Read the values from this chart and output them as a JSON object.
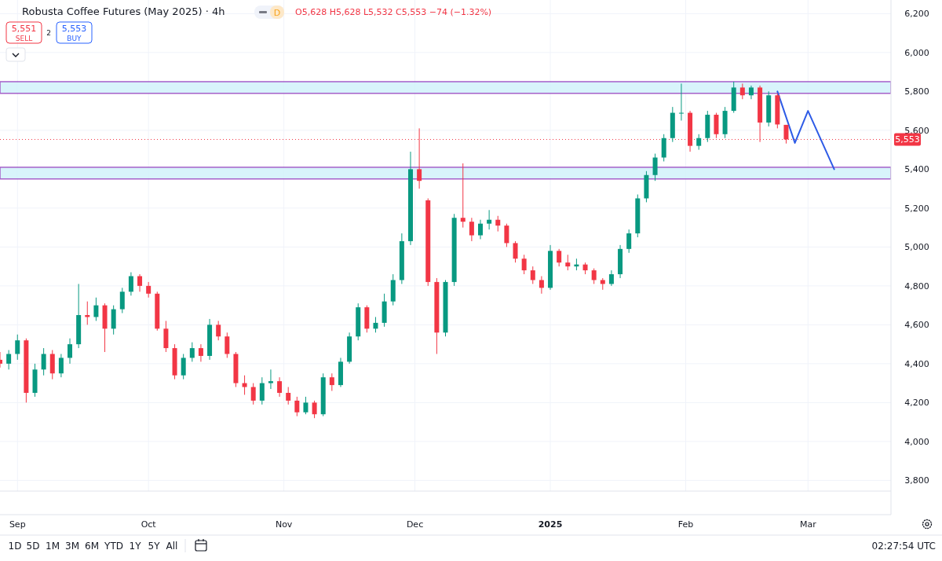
{
  "chart_data": {
    "type": "candlestick",
    "title": "Robusta Coffee Futures (May 2025) · 4h",
    "subtitle": "O5,628 H5,628 L5,532 C5,553 −74 (−1.32%)",
    "annotations": [
      "5,551",
      "SELL",
      "2",
      "5,553",
      "BUY",
      "D",
      "1D",
      "5D",
      "1M",
      "3M",
      "6M",
      "YTD",
      "1Y",
      "5Y",
      "All",
      "02:27:54 UTC"
    ],
    "xlim": [
      "2024-08-28",
      "2025-03-20"
    ],
    "xticks": [
      {
        "value": "2024-09-01",
        "label": "Sep"
      },
      {
        "value": "2024-10-01",
        "label": "Oct"
      },
      {
        "value": "2024-11-01",
        "label": "Nov"
      },
      {
        "value": "2024-12-01",
        "label": "Dec"
      },
      {
        "value": "2025-01-01",
        "label": "2025"
      },
      {
        "value": "2025-02-01",
        "label": "Feb"
      },
      {
        "value": "2025-03-01",
        "label": "Mar"
      }
    ],
    "ylim": [
      3745,
      6270
    ],
    "yticks": [
      {
        "value": 3800,
        "label": "3,800"
      },
      {
        "value": 4000,
        "label": "4,000"
      },
      {
        "value": 4200,
        "label": "4,200"
      },
      {
        "value": 4400,
        "label": "4,400"
      },
      {
        "value": 4600,
        "label": "4,600"
      },
      {
        "value": 4800,
        "label": "4,800"
      },
      {
        "value": 5000,
        "label": "5,000"
      },
      {
        "value": 5200,
        "label": "5,200"
      },
      {
        "value": 5400,
        "label": "5,400"
      },
      {
        "value": 5600,
        "label": "5,600"
      },
      {
        "value": 5800,
        "label": "5,800"
      },
      {
        "value": 6000,
        "label": "6,000"
      },
      {
        "value": 6200,
        "label": "6,200"
      }
    ],
    "grid": true,
    "bands": [
      {
        "axis": "y",
        "from": 5350,
        "to": 5410,
        "color": "#d4f3fb"
      },
      {
        "axis": "y",
        "from": 5790,
        "to": 5850,
        "color": "#d4f3fb"
      }
    ],
    "ref_lines": [
      {
        "axis": "y",
        "value": 5553,
        "label": "5,553",
        "color": "#f23645",
        "line_style": "dotted"
      }
    ],
    "series": [
      {
        "type": "candlestick",
        "x": [
          "2024-08-28",
          "2024-08-30",
          "2024-09-01",
          "2024-09-03",
          "2024-09-05",
          "2024-09-07",
          "2024-09-09",
          "2024-09-11",
          "2024-09-13",
          "2024-09-15",
          "2024-09-17",
          "2024-09-19",
          "2024-09-21",
          "2024-09-23",
          "2024-09-25",
          "2024-09-27",
          "2024-09-29",
          "2024-10-01",
          "2024-10-03",
          "2024-10-05",
          "2024-10-07",
          "2024-10-09",
          "2024-10-11",
          "2024-10-13",
          "2024-10-15",
          "2024-10-17",
          "2024-10-19",
          "2024-10-21",
          "2024-10-23",
          "2024-10-25",
          "2024-10-27",
          "2024-10-29",
          "2024-10-31",
          "2024-11-02",
          "2024-11-04",
          "2024-11-06",
          "2024-11-08",
          "2024-11-10",
          "2024-11-12",
          "2024-11-14",
          "2024-11-16",
          "2024-11-18",
          "2024-11-20",
          "2024-11-22",
          "2024-11-24",
          "2024-11-26",
          "2024-11-28",
          "2024-11-30",
          "2024-12-02",
          "2024-12-04",
          "2024-12-06",
          "2024-12-08",
          "2024-12-10",
          "2024-12-12",
          "2024-12-14",
          "2024-12-16",
          "2024-12-18",
          "2024-12-20",
          "2024-12-22",
          "2024-12-24",
          "2024-12-26",
          "2024-12-28",
          "2024-12-30",
          "2025-01-01",
          "2025-01-03",
          "2025-01-05",
          "2025-01-07",
          "2025-01-09",
          "2025-01-11",
          "2025-01-13",
          "2025-01-15",
          "2025-01-17",
          "2025-01-19",
          "2025-01-21",
          "2025-01-23",
          "2025-01-25",
          "2025-01-27",
          "2025-01-29",
          "2025-01-31",
          "2025-02-02",
          "2025-02-04",
          "2025-02-06",
          "2025-02-08",
          "2025-02-10",
          "2025-02-12",
          "2025-02-14",
          "2025-02-16",
          "2025-02-18",
          "2025-02-20",
          "2025-02-22",
          "2025-02-24"
        ],
        "ohlc": [
          [
            4420,
            4460,
            4380,
            4400
          ],
          [
            4400,
            4470,
            4370,
            4450
          ],
          [
            4450,
            4550,
            4420,
            4520
          ],
          [
            4520,
            4530,
            4200,
            4250
          ],
          [
            4250,
            4400,
            4230,
            4370
          ],
          [
            4370,
            4480,
            4340,
            4450
          ],
          [
            4450,
            4470,
            4320,
            4350
          ],
          [
            4350,
            4450,
            4330,
            4430
          ],
          [
            4430,
            4530,
            4400,
            4500
          ],
          [
            4500,
            4810,
            4480,
            4650
          ],
          [
            4650,
            4720,
            4600,
            4640
          ],
          [
            4640,
            4740,
            4620,
            4700
          ],
          [
            4700,
            4710,
            4460,
            4580
          ],
          [
            4580,
            4700,
            4550,
            4680
          ],
          [
            4680,
            4790,
            4660,
            4770
          ],
          [
            4770,
            4870,
            4750,
            4850
          ],
          [
            4850,
            4860,
            4770,
            4800
          ],
          [
            4800,
            4820,
            4740,
            4760
          ],
          [
            4760,
            4770,
            4570,
            4580
          ],
          [
            4580,
            4620,
            4460,
            4480
          ],
          [
            4480,
            4500,
            4320,
            4340
          ],
          [
            4340,
            4450,
            4320,
            4430
          ],
          [
            4430,
            4510,
            4410,
            4480
          ],
          [
            4480,
            4500,
            4410,
            4440
          ],
          [
            4440,
            4630,
            4420,
            4600
          ],
          [
            4600,
            4620,
            4520,
            4540
          ],
          [
            4540,
            4560,
            4430,
            4450
          ],
          [
            4450,
            4460,
            4280,
            4300
          ],
          [
            4300,
            4340,
            4240,
            4280
          ],
          [
            4280,
            4300,
            4190,
            4210
          ],
          [
            4210,
            4330,
            4190,
            4300
          ],
          [
            4300,
            4370,
            4270,
            4310
          ],
          [
            4310,
            4330,
            4230,
            4250
          ],
          [
            4250,
            4280,
            4190,
            4210
          ],
          [
            4210,
            4230,
            4130,
            4150
          ],
          [
            4150,
            4230,
            4140,
            4200
          ],
          [
            4200,
            4210,
            4120,
            4140
          ],
          [
            4140,
            4350,
            4130,
            4330
          ],
          [
            4330,
            4350,
            4260,
            4290
          ],
          [
            4290,
            4430,
            4280,
            4410
          ],
          [
            4410,
            4560,
            4400,
            4540
          ],
          [
            4540,
            4710,
            4520,
            4690
          ],
          [
            4690,
            4700,
            4560,
            4580
          ],
          [
            4580,
            4640,
            4560,
            4610
          ],
          [
            4610,
            4760,
            4590,
            4720
          ],
          [
            4720,
            4860,
            4700,
            4830
          ],
          [
            4830,
            5070,
            4810,
            5030
          ],
          [
            5030,
            5490,
            5010,
            5400
          ],
          [
            5400,
            5610,
            5300,
            5340
          ],
          [
            5240,
            5250,
            4800,
            4820
          ],
          [
            4820,
            4840,
            4450,
            4560
          ],
          [
            4560,
            4830,
            4540,
            4820
          ],
          [
            4820,
            5170,
            4800,
            5150
          ],
          [
            5150,
            5430,
            5100,
            5130
          ],
          [
            5130,
            5150,
            5030,
            5060
          ],
          [
            5060,
            5140,
            5040,
            5120
          ],
          [
            5120,
            5190,
            5090,
            5140
          ],
          [
            5140,
            5160,
            5080,
            5110
          ],
          [
            5110,
            5120,
            5000,
            5020
          ],
          [
            5020,
            5030,
            4920,
            4940
          ],
          [
            4940,
            4960,
            4860,
            4880
          ],
          [
            4880,
            4900,
            4810,
            4830
          ],
          [
            4830,
            4850,
            4760,
            4790
          ],
          [
            4790,
            5010,
            4780,
            4980
          ],
          [
            4980,
            4990,
            4900,
            4920
          ],
          [
            4920,
            4960,
            4880,
            4900
          ],
          [
            4900,
            4940,
            4880,
            4910
          ],
          [
            4910,
            4920,
            4860,
            4880
          ],
          [
            4880,
            4890,
            4810,
            4830
          ],
          [
            4830,
            4840,
            4780,
            4810
          ],
          [
            4810,
            4880,
            4800,
            4860
          ],
          [
            4860,
            5010,
            4840,
            4990
          ],
          [
            4990,
            5090,
            4970,
            5070
          ],
          [
            5070,
            5270,
            5050,
            5250
          ],
          [
            5250,
            5390,
            5230,
            5370
          ],
          [
            5370,
            5480,
            5340,
            5460
          ],
          [
            5460,
            5580,
            5440,
            5560
          ],
          [
            5560,
            5720,
            5540,
            5690
          ],
          [
            5690,
            5840,
            5650,
            5690
          ],
          [
            5690,
            5700,
            5490,
            5520
          ],
          [
            5520,
            5580,
            5500,
            5560
          ],
          [
            5560,
            5700,
            5540,
            5680
          ],
          [
            5680,
            5690,
            5560,
            5580
          ],
          [
            5580,
            5720,
            5560,
            5700
          ],
          [
            5700,
            5850,
            5690,
            5820
          ],
          [
            5820,
            5840,
            5760,
            5780
          ],
          [
            5780,
            5830,
            5760,
            5820
          ],
          [
            5820,
            5830,
            5540,
            5640
          ],
          [
            5640,
            5800,
            5620,
            5780
          ],
          [
            5780,
            5790,
            5610,
            5630
          ],
          [
            5628,
            5628,
            5532,
            5553
          ]
        ]
      },
      {
        "type": "line",
        "x": [
          "2025-02-22",
          "2025-02-26",
          "2025-03-01",
          "2025-03-07"
        ],
        "values": [
          5800,
          5535,
          5700,
          5400
        ],
        "color": "#2e5be6"
      }
    ]
  }
}
